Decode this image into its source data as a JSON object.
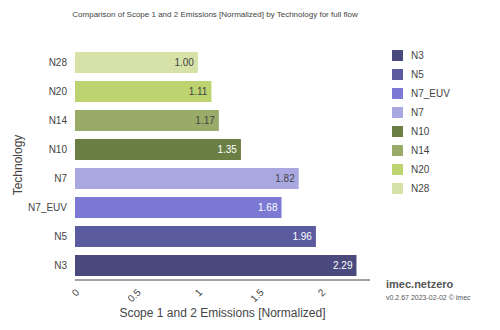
{
  "chart_data": {
    "type": "bar",
    "orientation": "horizontal",
    "title": "Comparison of Scope 1 and 2 Emissions [Normalized] by Technology for full flow",
    "x_label": "Scope 1 and 2 Emissions [Normalized]",
    "y_label": "Technology",
    "categories": [
      "N3",
      "N5",
      "N7_EUV",
      "N7",
      "N10",
      "N14",
      "N20",
      "N28"
    ],
    "values": [
      2.29,
      1.96,
      1.68,
      1.82,
      1.35,
      1.17,
      1.11,
      1.0
    ],
    "value_labels": [
      "2.29",
      "1.96",
      "1.68",
      "1.82",
      "1.35",
      "1.17",
      "1.11",
      "1.00"
    ],
    "colors": [
      "#4a4a7e",
      "#5b5b9f",
      "#7b79d3",
      "#a9a8e0",
      "#6b7f45",
      "#98ab68",
      "#bcd36f",
      "#d6e2a8"
    ],
    "xlim": [
      0,
      2.4
    ],
    "xticks": [
      0,
      0.5,
      1,
      1.5,
      2
    ],
    "grid": false,
    "data_labels": true,
    "legend": "right",
    "annotations": [
      "imec.netzero",
      "v0.2.67 2023-02-02 © imec"
    ]
  }
}
